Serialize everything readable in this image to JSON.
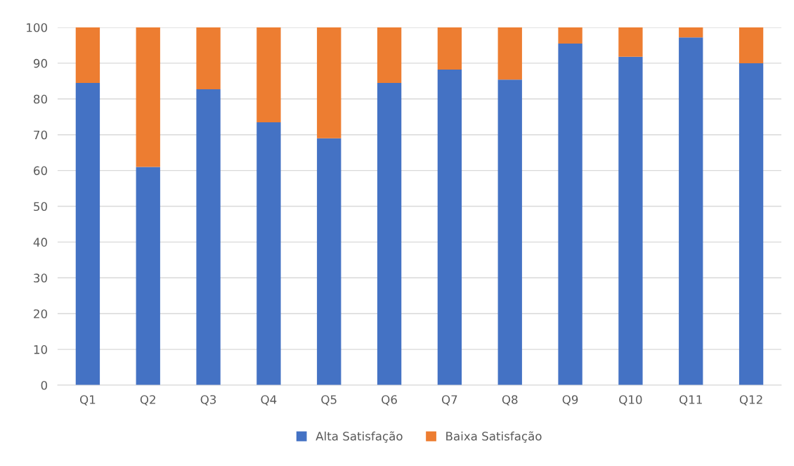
{
  "chart_data": {
    "type": "bar",
    "stacked": true,
    "categories": [
      "Q1",
      "Q2",
      "Q3",
      "Q4",
      "Q5",
      "Q6",
      "Q7",
      "Q8",
      "Q9",
      "Q10",
      "Q11",
      "Q12"
    ],
    "series": [
      {
        "name": "Alta Satisfação",
        "color": "#4472c4",
        "values": [
          84.5,
          61,
          82.7,
          73.5,
          69,
          84.5,
          88.2,
          85.4,
          95.5,
          91.8,
          97.2,
          90
        ]
      },
      {
        "name": "Baixa Satisfação",
        "color": "#ed7d31",
        "values": [
          15.5,
          39,
          17.3,
          26.5,
          31,
          15.5,
          11.8,
          14.6,
          4.5,
          8.2,
          2.8,
          10
        ]
      }
    ],
    "ylim": [
      0,
      100
    ],
    "yticks": [
      0,
      10,
      20,
      30,
      40,
      50,
      60,
      70,
      80,
      90,
      100
    ],
    "grid": "y",
    "legend": "bottom"
  }
}
